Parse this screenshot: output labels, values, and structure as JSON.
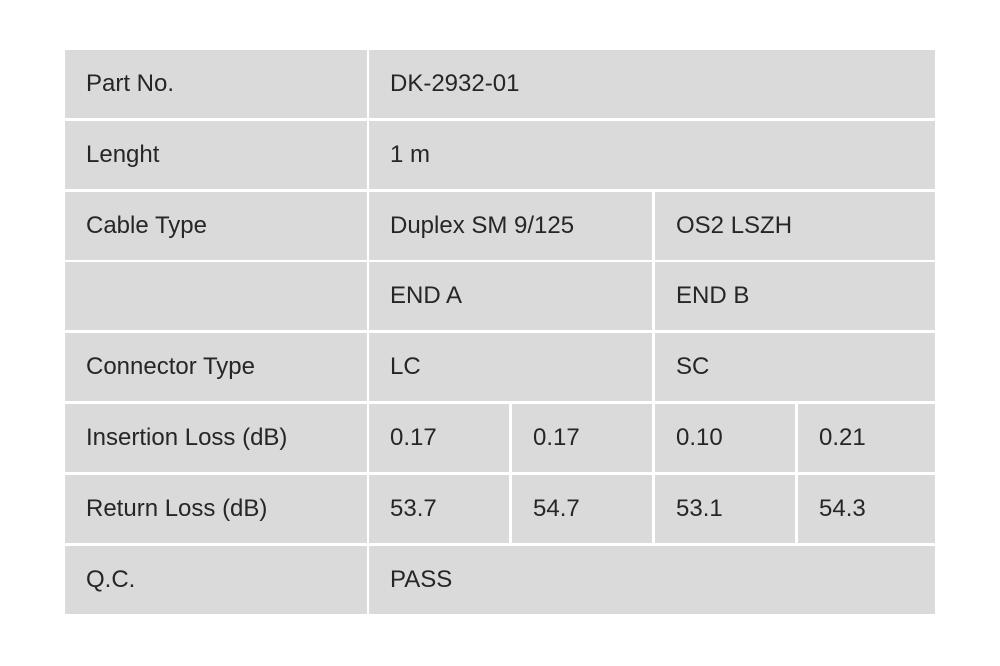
{
  "table": {
    "rows": [
      [
        "Part No.",
        "DK-2932-01"
      ],
      [
        "Lenght",
        "1 m"
      ],
      [
        "Cable Type",
        "Duplex SM 9/125",
        "OS2 LSZH"
      ],
      [
        "END A",
        "END B"
      ],
      [
        "Connector Type",
        "LC",
        "SC"
      ],
      [
        "Insertion Loss (dB)",
        "0.17",
        "0.17",
        "0.10",
        "0.21"
      ],
      [
        "Return Loss (dB)",
        "53.7",
        "54.7",
        "53.1",
        "54.3"
      ],
      [
        "Q.C.",
        "PASS"
      ]
    ]
  }
}
